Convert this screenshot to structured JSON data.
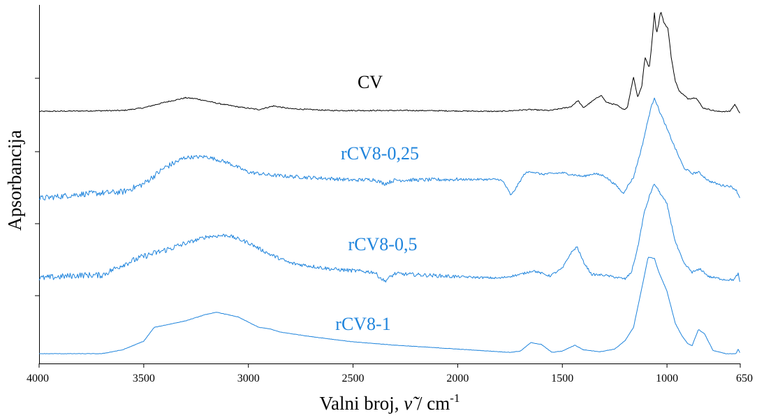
{
  "chart_data": {
    "type": "line",
    "xlabel_main": "Valni broj, ",
    "xlabel_symbol": "ν̃",
    "xlabel_unit": " / cm",
    "xlabel_sup": "-1",
    "ylabel": "Apsorbancija",
    "xlim": [
      4000,
      650
    ],
    "x_reversed": true,
    "x_ticks": [
      4000,
      3500,
      3000,
      2500,
      2000,
      1500,
      1000,
      650
    ],
    "y_ticks_labeled": false,
    "grid": false,
    "series": [
      {
        "name": "CV",
        "color": "#000000",
        "points": [
          [
            4000,
            0.02
          ],
          [
            3600,
            0.03
          ],
          [
            3500,
            0.06
          ],
          [
            3400,
            0.12
          ],
          [
            3300,
            0.17
          ],
          [
            3250,
            0.16
          ],
          [
            3150,
            0.11
          ],
          [
            3050,
            0.07
          ],
          [
            2950,
            0.04
          ],
          [
            2880,
            0.08
          ],
          [
            2800,
            0.05
          ],
          [
            2600,
            0.03
          ],
          [
            2200,
            0.03
          ],
          [
            1800,
            0.02
          ],
          [
            1660,
            0.04
          ],
          [
            1560,
            0.03
          ],
          [
            1460,
            0.07
          ],
          [
            1425,
            0.14
          ],
          [
            1400,
            0.06
          ],
          [
            1370,
            0.11
          ],
          [
            1340,
            0.16
          ],
          [
            1315,
            0.2
          ],
          [
            1290,
            0.12
          ],
          [
            1240,
            0.09
          ],
          [
            1210,
            0.04
          ],
          [
            1190,
            0.06
          ],
          [
            1160,
            0.4
          ],
          [
            1140,
            0.18
          ],
          [
            1120,
            0.3
          ],
          [
            1105,
            0.62
          ],
          [
            1085,
            0.5
          ],
          [
            1075,
            0.7
          ],
          [
            1060,
            1.1
          ],
          [
            1050,
            0.88
          ],
          [
            1040,
            0.98
          ],
          [
            1030,
            1.13
          ],
          [
            1015,
            1.0
          ],
          [
            995,
            0.93
          ],
          [
            980,
            0.62
          ],
          [
            960,
            0.35
          ],
          [
            940,
            0.24
          ],
          [
            900,
            0.16
          ],
          [
            860,
            0.17
          ],
          [
            830,
            0.06
          ],
          [
            760,
            0.02
          ],
          [
            700,
            0.02
          ],
          [
            675,
            0.1
          ],
          [
            665,
            0.05
          ],
          [
            650,
            0.0
          ]
        ]
      },
      {
        "name": "rCV8-0,25",
        "color": "#1f84dc",
        "points": [
          [
            4000,
            0.0
          ],
          [
            3800,
            0.06
          ],
          [
            3600,
            0.09
          ],
          [
            3500,
            0.2
          ],
          [
            3400,
            0.42
          ],
          [
            3300,
            0.56
          ],
          [
            3200,
            0.57
          ],
          [
            3100,
            0.49
          ],
          [
            3000,
            0.36
          ],
          [
            2900,
            0.32
          ],
          [
            2800,
            0.3
          ],
          [
            2600,
            0.27
          ],
          [
            2500,
            0.25
          ],
          [
            2400,
            0.26
          ],
          [
            2350,
            0.2
          ],
          [
            2300,
            0.25
          ],
          [
            2000,
            0.26
          ],
          [
            1800,
            0.26
          ],
          [
            1780,
            0.22
          ],
          [
            1745,
            0.04
          ],
          [
            1720,
            0.15
          ],
          [
            1680,
            0.34
          ],
          [
            1650,
            0.37
          ],
          [
            1600,
            0.33
          ],
          [
            1500,
            0.35
          ],
          [
            1460,
            0.33
          ],
          [
            1400,
            0.3
          ],
          [
            1350,
            0.34
          ],
          [
            1300,
            0.31
          ],
          [
            1240,
            0.17
          ],
          [
            1210,
            0.07
          ],
          [
            1190,
            0.16
          ],
          [
            1160,
            0.29
          ],
          [
            1120,
            0.7
          ],
          [
            1080,
            1.2
          ],
          [
            1060,
            1.38
          ],
          [
            1040,
            1.22
          ],
          [
            1000,
            0.95
          ],
          [
            960,
            0.68
          ],
          [
            920,
            0.42
          ],
          [
            880,
            0.34
          ],
          [
            850,
            0.36
          ],
          [
            800,
            0.24
          ],
          [
            740,
            0.18
          ],
          [
            700,
            0.17
          ],
          [
            670,
            0.12
          ],
          [
            655,
            0.03
          ],
          [
            650,
            0.0
          ]
        ]
      },
      {
        "name": "rCV8-0,5",
        "color": "#1f84dc",
        "points": [
          [
            4000,
            0.0
          ],
          [
            3800,
            0.04
          ],
          [
            3700,
            0.04
          ],
          [
            3600,
            0.18
          ],
          [
            3500,
            0.29
          ],
          [
            3400,
            0.37
          ],
          [
            3300,
            0.46
          ],
          [
            3200,
            0.55
          ],
          [
            3100,
            0.57
          ],
          [
            3000,
            0.47
          ],
          [
            2900,
            0.32
          ],
          [
            2800,
            0.2
          ],
          [
            2600,
            0.12
          ],
          [
            2400,
            0.08
          ],
          [
            2350,
            -0.04
          ],
          [
            2300,
            0.06
          ],
          [
            2000,
            0.02
          ],
          [
            1800,
            0.0
          ],
          [
            1700,
            0.05
          ],
          [
            1640,
            0.1
          ],
          [
            1560,
            0.03
          ],
          [
            1500,
            0.13
          ],
          [
            1460,
            0.33
          ],
          [
            1430,
            0.42
          ],
          [
            1400,
            0.22
          ],
          [
            1360,
            0.05
          ],
          [
            1300,
            0.04
          ],
          [
            1240,
            0.01
          ],
          [
            1200,
            -0.01
          ],
          [
            1170,
            0.08
          ],
          [
            1140,
            0.4
          ],
          [
            1110,
            0.85
          ],
          [
            1080,
            1.12
          ],
          [
            1060,
            1.25
          ],
          [
            1040,
            1.16
          ],
          [
            1000,
            0.98
          ],
          [
            960,
            0.48
          ],
          [
            920,
            0.2
          ],
          [
            880,
            0.08
          ],
          [
            840,
            0.12
          ],
          [
            800,
            0.02
          ],
          [
            720,
            -0.02
          ],
          [
            680,
            -0.02
          ],
          [
            660,
            0.06
          ],
          [
            650,
            -0.09
          ]
        ]
      },
      {
        "name": "rCV8-1",
        "color": "#1f84dc",
        "points": [
          [
            4000,
            0.0
          ],
          [
            3700,
            0.0
          ],
          [
            3600,
            0.06
          ],
          [
            3500,
            0.19
          ],
          [
            3450,
            0.4
          ],
          [
            3300,
            0.5
          ],
          [
            3200,
            0.6
          ],
          [
            3150,
            0.63
          ],
          [
            3050,
            0.56
          ],
          [
            2950,
            0.4
          ],
          [
            2900,
            0.38
          ],
          [
            2850,
            0.33
          ],
          [
            2700,
            0.26
          ],
          [
            2500,
            0.18
          ],
          [
            2300,
            0.13
          ],
          [
            2100,
            0.09
          ],
          [
            1900,
            0.05
          ],
          [
            1750,
            0.02
          ],
          [
            1700,
            0.04
          ],
          [
            1650,
            0.17
          ],
          [
            1600,
            0.14
          ],
          [
            1550,
            0.02
          ],
          [
            1500,
            0.04
          ],
          [
            1440,
            0.13
          ],
          [
            1400,
            0.06
          ],
          [
            1320,
            0.03
          ],
          [
            1250,
            0.07
          ],
          [
            1200,
            0.2
          ],
          [
            1160,
            0.4
          ],
          [
            1120,
            1.0
          ],
          [
            1090,
            1.47
          ],
          [
            1060,
            1.45
          ],
          [
            1040,
            1.25
          ],
          [
            1000,
            0.95
          ],
          [
            960,
            0.46
          ],
          [
            930,
            0.28
          ],
          [
            900,
            0.15
          ],
          [
            880,
            0.12
          ],
          [
            850,
            0.37
          ],
          [
            820,
            0.3
          ],
          [
            780,
            0.05
          ],
          [
            720,
            0.0
          ],
          [
            670,
            0.0
          ],
          [
            660,
            0.07
          ],
          [
            650,
            0.0
          ]
        ]
      }
    ]
  }
}
